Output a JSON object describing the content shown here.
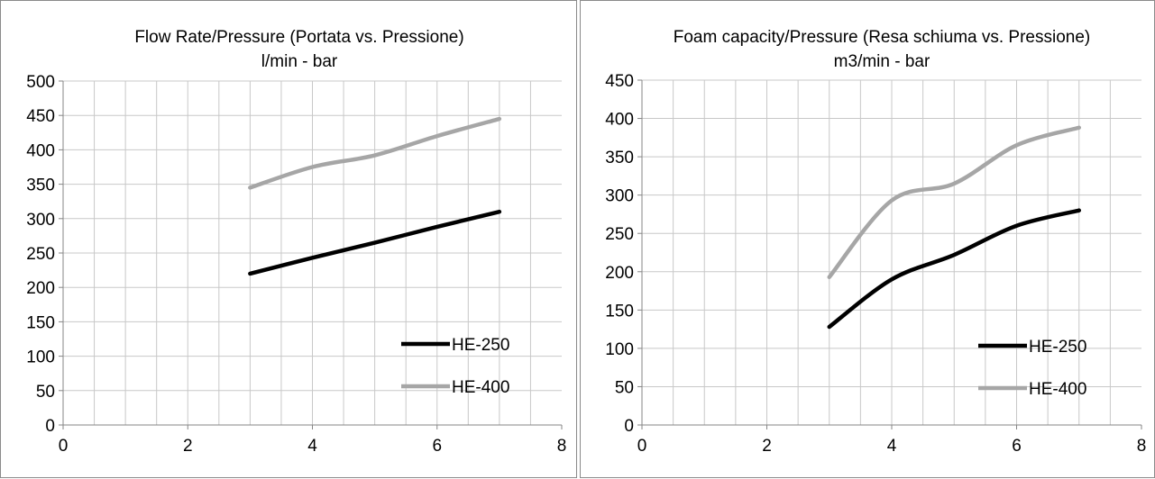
{
  "chart_data": [
    {
      "type": "line",
      "title": "Flow Rate/Pressure (Portata vs. Pressione)",
      "subtitle": "l/min - bar",
      "xlim": [
        0,
        8
      ],
      "ylim": [
        0,
        500
      ],
      "xticks": [
        0,
        2,
        4,
        6,
        8
      ],
      "yticks": [
        0,
        50,
        100,
        150,
        200,
        250,
        300,
        350,
        400,
        450,
        500
      ],
      "grid": true,
      "legend": "bottom-right",
      "series": [
        {
          "name": "HE-250",
          "color": "#000000",
          "x": [
            3,
            4,
            5,
            6,
            7
          ],
          "y": [
            220,
            243,
            265,
            288,
            310
          ]
        },
        {
          "name": "HE-400",
          "color": "#a6a6a6",
          "x": [
            3,
            4,
            5,
            6,
            7
          ],
          "y": [
            345,
            375,
            392,
            420,
            445
          ]
        }
      ]
    },
    {
      "type": "line",
      "title": "Foam capacity/Pressure (Resa schiuma vs. Pressione)",
      "subtitle": "m3/min - bar",
      "xlim": [
        0,
        8
      ],
      "ylim": [
        0,
        450
      ],
      "xticks": [
        0,
        2,
        4,
        6,
        8
      ],
      "yticks": [
        0,
        50,
        100,
        150,
        200,
        250,
        300,
        350,
        400,
        450
      ],
      "grid": true,
      "legend": "bottom-right",
      "series": [
        {
          "name": "HE-250",
          "color": "#000000",
          "x": [
            3,
            4,
            5,
            6,
            7
          ],
          "y": [
            128,
            190,
            222,
            260,
            280
          ]
        },
        {
          "name": "HE-400",
          "color": "#a6a6a6",
          "x": [
            3,
            4,
            5,
            6,
            7
          ],
          "y": [
            193,
            293,
            315,
            365,
            388
          ]
        }
      ]
    }
  ]
}
